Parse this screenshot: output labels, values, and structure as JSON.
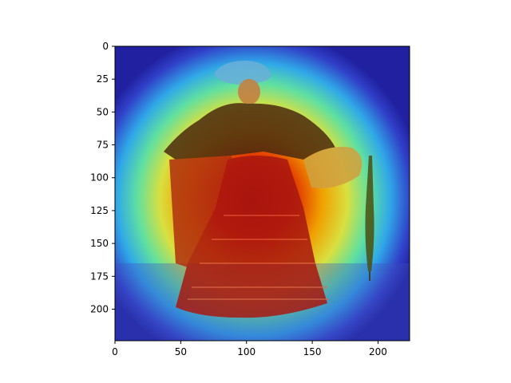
{
  "figure": {
    "type": "image-plot",
    "content": "heatmap overlay on a vintage photo of a standing woman in a bonnet, cape and flounced dress holding a furled umbrella",
    "colormap": "jet",
    "x_ticks": [
      "0",
      "50",
      "100",
      "150",
      "200"
    ],
    "y_ticks": [
      "0",
      "25",
      "50",
      "75",
      "100",
      "125",
      "150",
      "175",
      "200"
    ],
    "x_range": [
      0,
      224
    ],
    "y_range": [
      0,
      224
    ],
    "y_axis_inverted": true
  }
}
